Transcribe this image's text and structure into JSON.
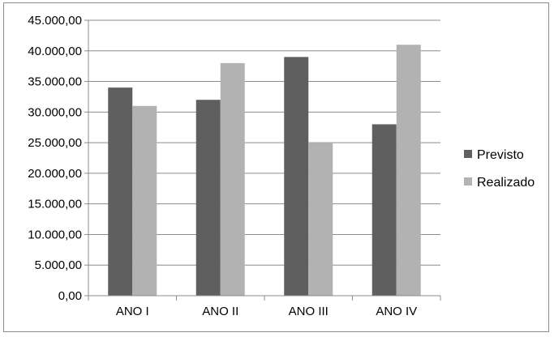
{
  "chart_data": {
    "type": "bar",
    "categories": [
      "ANO I",
      "ANO II",
      "ANO III",
      "ANO IV"
    ],
    "series": [
      {
        "name": "Previsto",
        "values": [
          34000,
          32000,
          39000,
          28000
        ],
        "color": "#5f5f5f"
      },
      {
        "name": "Realizado",
        "values": [
          31000,
          38000,
          25000,
          41000
        ],
        "color": "#b2b2b2"
      }
    ],
    "ylim": [
      0,
      45000
    ],
    "ytick_step": 5000,
    "ytick_labels": [
      "0,00",
      "5.000,00",
      "10.000,00",
      "15.000,00",
      "20.000,00",
      "25.000,00",
      "30.000,00",
      "35.000,00",
      "40.000,00",
      "45.000,00"
    ],
    "title": "",
    "xlabel": "",
    "ylabel": "",
    "grid": true,
    "legend_position": "right",
    "axis_color": "#8c8c8c"
  }
}
